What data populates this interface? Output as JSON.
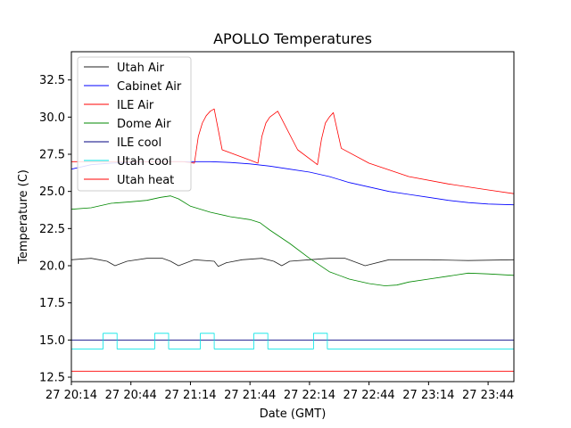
{
  "chart_data": {
    "type": "line",
    "title": "APOLLO Temperatures",
    "xlabel": "Date (GMT)",
    "ylabel": "Temperature (C)",
    "xlim": [
      0,
      223
    ],
    "ylim": [
      12.2,
      34.4
    ],
    "yticks": [
      12.5,
      15.0,
      17.5,
      20.0,
      22.5,
      25.0,
      27.5,
      30.0,
      32.5
    ],
    "ytick_labels": [
      "12.5",
      "15.0",
      "17.5",
      "20.0",
      "22.5",
      "25.0",
      "27.5",
      "30.0",
      "32.5"
    ],
    "xticks": [
      0,
      30,
      60,
      90,
      120,
      150,
      180,
      210
    ],
    "xtick_labels": [
      "27 20:14",
      "27 20:44",
      "27 21:14",
      "27 21:44",
      "27 22:14",
      "27 22:44",
      "27 23:14",
      "27 23:44"
    ],
    "legend_position": "top-left",
    "series": [
      {
        "name": "Utah Air",
        "color": "#222222",
        "x": [
          -6,
          0,
          10,
          14,
          18,
          22,
          28,
          38,
          46,
          50,
          54,
          62,
          72,
          74,
          78,
          86,
          96,
          102,
          106,
          110,
          120,
          130,
          138,
          142,
          148,
          160,
          180,
          200,
          223
        ],
        "y": [
          20.3,
          20.4,
          20.5,
          20.4,
          20.3,
          20.0,
          20.3,
          20.5,
          20.5,
          20.3,
          20.0,
          20.4,
          20.3,
          19.95,
          20.2,
          20.4,
          20.5,
          20.3,
          20.0,
          20.3,
          20.4,
          20.5,
          20.5,
          20.3,
          20.0,
          20.4,
          20.4,
          20.35,
          20.4
        ]
      },
      {
        "name": "Cabinet Air",
        "color": "#0000ff",
        "x": [
          -6,
          0,
          10,
          20,
          30,
          40,
          50,
          60,
          70,
          80,
          90,
          100,
          110,
          120,
          130,
          140,
          150,
          160,
          170,
          180,
          190,
          200,
          210,
          223
        ],
        "y": [
          26.2,
          26.5,
          26.8,
          26.9,
          26.95,
          27.0,
          27.0,
          27.0,
          27.0,
          26.95,
          26.85,
          26.7,
          26.5,
          26.3,
          26.0,
          25.6,
          25.3,
          25.0,
          24.8,
          24.6,
          24.4,
          24.25,
          24.15,
          24.1
        ]
      },
      {
        "name": "ILE Air",
        "color": "#ff0000",
        "x": [
          -6,
          0,
          4,
          8,
          12,
          16,
          20,
          22,
          24,
          30,
          40,
          44,
          50,
          56,
          62,
          64,
          66,
          68,
          70,
          72,
          76,
          86,
          92,
          94,
          96,
          98,
          100,
          104,
          114,
          122,
          124,
          126,
          128,
          130,
          132,
          136,
          150,
          170,
          190,
          210,
          223
        ],
        "y": [
          27.0,
          27.0,
          27.0,
          27.0,
          27.0,
          27.0,
          27.0,
          27.0,
          27.0,
          27.0,
          27.0,
          27.0,
          27.0,
          27.0,
          26.9,
          28.7,
          29.6,
          30.1,
          30.4,
          30.55,
          27.8,
          27.3,
          27.0,
          26.9,
          28.7,
          29.6,
          30.0,
          30.4,
          27.8,
          27.0,
          26.8,
          28.5,
          29.6,
          30.0,
          30.3,
          27.9,
          26.9,
          26.0,
          25.5,
          25.1,
          24.85
        ]
      },
      {
        "name": "Dome Air",
        "color": "#008800",
        "x": [
          -6,
          0,
          10,
          20,
          30,
          38,
          45,
          50,
          54,
          60,
          70,
          80,
          90,
          95,
          100,
          110,
          120,
          130,
          140,
          150,
          158,
          164,
          170,
          180,
          190,
          200,
          210,
          223
        ],
        "y": [
          23.6,
          23.8,
          23.9,
          24.2,
          24.3,
          24.4,
          24.6,
          24.7,
          24.5,
          24.0,
          23.6,
          23.3,
          23.1,
          22.9,
          22.4,
          21.5,
          20.5,
          19.6,
          19.1,
          18.8,
          18.65,
          18.7,
          18.9,
          19.1,
          19.3,
          19.5,
          19.45,
          19.35
        ]
      },
      {
        "name": "ILE cool",
        "color": "#000080",
        "x": [
          -6,
          223
        ],
        "y": [
          15.0,
          15.0
        ]
      },
      {
        "name": "Utah cool",
        "color": "#00e5e5",
        "x": [
          -6,
          16,
          16,
          23,
          23,
          42,
          42,
          49,
          49,
          65,
          65,
          72,
          72,
          92,
          92,
          99,
          99,
          122,
          122,
          129,
          129,
          223
        ],
        "y": [
          14.4,
          14.4,
          15.45,
          15.45,
          14.4,
          14.4,
          15.45,
          15.45,
          14.4,
          14.4,
          15.45,
          15.45,
          14.4,
          14.4,
          15.45,
          15.45,
          14.4,
          14.4,
          15.45,
          15.45,
          14.4,
          14.4
        ]
      },
      {
        "name": "Utah heat",
        "color": "#ff0000",
        "x": [
          -6,
          223
        ],
        "y": [
          12.9,
          12.9
        ]
      }
    ]
  }
}
